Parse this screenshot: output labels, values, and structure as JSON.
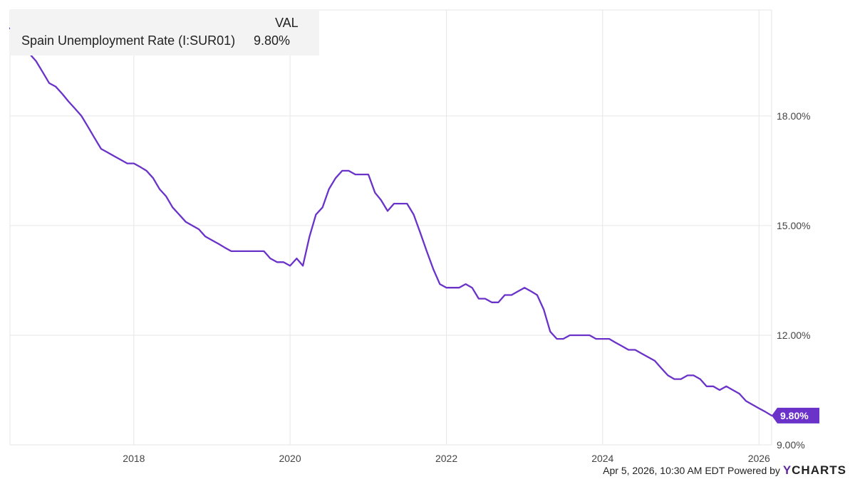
{
  "legend": {
    "header": "VAL",
    "series_name": "Spain Unemployment Rate (I:SUR01)",
    "series_value": "9.80%"
  },
  "footer": {
    "timestamp": "Apr 5, 2026, 10:30 AM EDT Powered by",
    "brand_y": "Y",
    "brand_rest": "CHARTS"
  },
  "colors": {
    "series": "#6a32c9",
    "grid": "#e6e6e6",
    "axis_text": "#444444"
  },
  "chart_data": {
    "type": "line",
    "title": "",
    "xlabel": "",
    "ylabel": "",
    "xlim": [
      "2016-06-01",
      "2026-03-01"
    ],
    "ylim": [
      9.0,
      20.9
    ],
    "y_ticks": [
      {
        "value": 9,
        "label": "9.00%"
      },
      {
        "value": 12,
        "label": "12.00%"
      },
      {
        "value": 15,
        "label": "15.00%"
      },
      {
        "value": 18,
        "label": "18.00%"
      }
    ],
    "x_ticks": [
      {
        "value": "2018-01-01",
        "label": "2018"
      },
      {
        "value": "2020-01-01",
        "label": "2020"
      },
      {
        "value": "2022-01-01",
        "label": "2022"
      },
      {
        "value": "2024-01-01",
        "label": "2024"
      },
      {
        "value": "2026-01-01",
        "label": "2026"
      }
    ],
    "last_value_label": "9.80%",
    "series": [
      {
        "name": "Spain Unemployment Rate (I:SUR01)",
        "points": [
          [
            "2016-06-01",
            20.4
          ],
          [
            "2016-07-01",
            20.2
          ],
          [
            "2016-08-01",
            20.0
          ],
          [
            "2016-09-01",
            19.7
          ],
          [
            "2016-10-01",
            19.5
          ],
          [
            "2016-11-01",
            19.2
          ],
          [
            "2016-12-01",
            18.9
          ],
          [
            "2017-01-01",
            18.8
          ],
          [
            "2017-02-01",
            18.6
          ],
          [
            "2017-03-01",
            18.4
          ],
          [
            "2017-04-01",
            18.2
          ],
          [
            "2017-05-01",
            18.0
          ],
          [
            "2017-06-01",
            17.7
          ],
          [
            "2017-07-01",
            17.4
          ],
          [
            "2017-08-01",
            17.1
          ],
          [
            "2017-09-01",
            17.0
          ],
          [
            "2017-10-01",
            16.9
          ],
          [
            "2017-11-01",
            16.8
          ],
          [
            "2017-12-01",
            16.7
          ],
          [
            "2018-01-01",
            16.7
          ],
          [
            "2018-02-01",
            16.6
          ],
          [
            "2018-03-01",
            16.5
          ],
          [
            "2018-04-01",
            16.3
          ],
          [
            "2018-05-01",
            16.0
          ],
          [
            "2018-06-01",
            15.8
          ],
          [
            "2018-07-01",
            15.5
          ],
          [
            "2018-08-01",
            15.3
          ],
          [
            "2018-09-01",
            15.1
          ],
          [
            "2018-10-01",
            15.0
          ],
          [
            "2018-11-01",
            14.9
          ],
          [
            "2018-12-01",
            14.7
          ],
          [
            "2019-01-01",
            14.6
          ],
          [
            "2019-02-01",
            14.5
          ],
          [
            "2019-03-01",
            14.4
          ],
          [
            "2019-04-01",
            14.3
          ],
          [
            "2019-05-01",
            14.3
          ],
          [
            "2019-06-01",
            14.3
          ],
          [
            "2019-07-01",
            14.3
          ],
          [
            "2019-08-01",
            14.3
          ],
          [
            "2019-09-01",
            14.3
          ],
          [
            "2019-10-01",
            14.1
          ],
          [
            "2019-11-01",
            14.0
          ],
          [
            "2019-12-01",
            14.0
          ],
          [
            "2020-01-01",
            13.9
          ],
          [
            "2020-02-01",
            14.1
          ],
          [
            "2020-03-01",
            13.9
          ],
          [
            "2020-04-01",
            14.7
          ],
          [
            "2020-05-01",
            15.3
          ],
          [
            "2020-06-01",
            15.5
          ],
          [
            "2020-07-01",
            16.0
          ],
          [
            "2020-08-01",
            16.3
          ],
          [
            "2020-09-01",
            16.5
          ],
          [
            "2020-10-01",
            16.5
          ],
          [
            "2020-11-01",
            16.4
          ],
          [
            "2020-12-01",
            16.4
          ],
          [
            "2021-01-01",
            16.4
          ],
          [
            "2021-02-01",
            15.9
          ],
          [
            "2021-03-01",
            15.7
          ],
          [
            "2021-04-01",
            15.4
          ],
          [
            "2021-05-01",
            15.6
          ],
          [
            "2021-06-01",
            15.6
          ],
          [
            "2021-07-01",
            15.6
          ],
          [
            "2021-08-01",
            15.3
          ],
          [
            "2021-09-01",
            14.8
          ],
          [
            "2021-10-01",
            14.3
          ],
          [
            "2021-11-01",
            13.8
          ],
          [
            "2021-12-01",
            13.4
          ],
          [
            "2022-01-01",
            13.3
          ],
          [
            "2022-02-01",
            13.3
          ],
          [
            "2022-03-01",
            13.3
          ],
          [
            "2022-04-01",
            13.4
          ],
          [
            "2022-05-01",
            13.3
          ],
          [
            "2022-06-01",
            13.0
          ],
          [
            "2022-07-01",
            13.0
          ],
          [
            "2022-08-01",
            12.9
          ],
          [
            "2022-09-01",
            12.9
          ],
          [
            "2022-10-01",
            13.1
          ],
          [
            "2022-11-01",
            13.1
          ],
          [
            "2022-12-01",
            13.2
          ],
          [
            "2023-01-01",
            13.3
          ],
          [
            "2023-02-01",
            13.2
          ],
          [
            "2023-03-01",
            13.1
          ],
          [
            "2023-04-01",
            12.7
          ],
          [
            "2023-05-01",
            12.1
          ],
          [
            "2023-06-01",
            11.9
          ],
          [
            "2023-07-01",
            11.9
          ],
          [
            "2023-08-01",
            12.0
          ],
          [
            "2023-09-01",
            12.0
          ],
          [
            "2023-10-01",
            12.0
          ],
          [
            "2023-11-01",
            12.0
          ],
          [
            "2023-12-01",
            11.9
          ],
          [
            "2024-01-01",
            11.9
          ],
          [
            "2024-02-01",
            11.9
          ],
          [
            "2024-03-01",
            11.8
          ],
          [
            "2024-04-01",
            11.7
          ],
          [
            "2024-05-01",
            11.6
          ],
          [
            "2024-06-01",
            11.6
          ],
          [
            "2024-07-01",
            11.5
          ],
          [
            "2024-08-01",
            11.4
          ],
          [
            "2024-09-01",
            11.3
          ],
          [
            "2024-10-01",
            11.1
          ],
          [
            "2024-11-01",
            10.9
          ],
          [
            "2024-12-01",
            10.8
          ],
          [
            "2025-01-01",
            10.8
          ],
          [
            "2025-02-01",
            10.9
          ],
          [
            "2025-03-01",
            10.9
          ],
          [
            "2025-04-01",
            10.8
          ],
          [
            "2025-05-01",
            10.6
          ],
          [
            "2025-06-01",
            10.6
          ],
          [
            "2025-07-01",
            10.5
          ],
          [
            "2025-08-01",
            10.6
          ],
          [
            "2025-09-01",
            10.5
          ],
          [
            "2025-10-01",
            10.4
          ],
          [
            "2025-11-01",
            10.2
          ],
          [
            "2025-12-01",
            10.1
          ],
          [
            "2026-01-01",
            10.0
          ],
          [
            "2026-02-01",
            9.9
          ],
          [
            "2026-03-01",
            9.8
          ]
        ]
      }
    ]
  }
}
